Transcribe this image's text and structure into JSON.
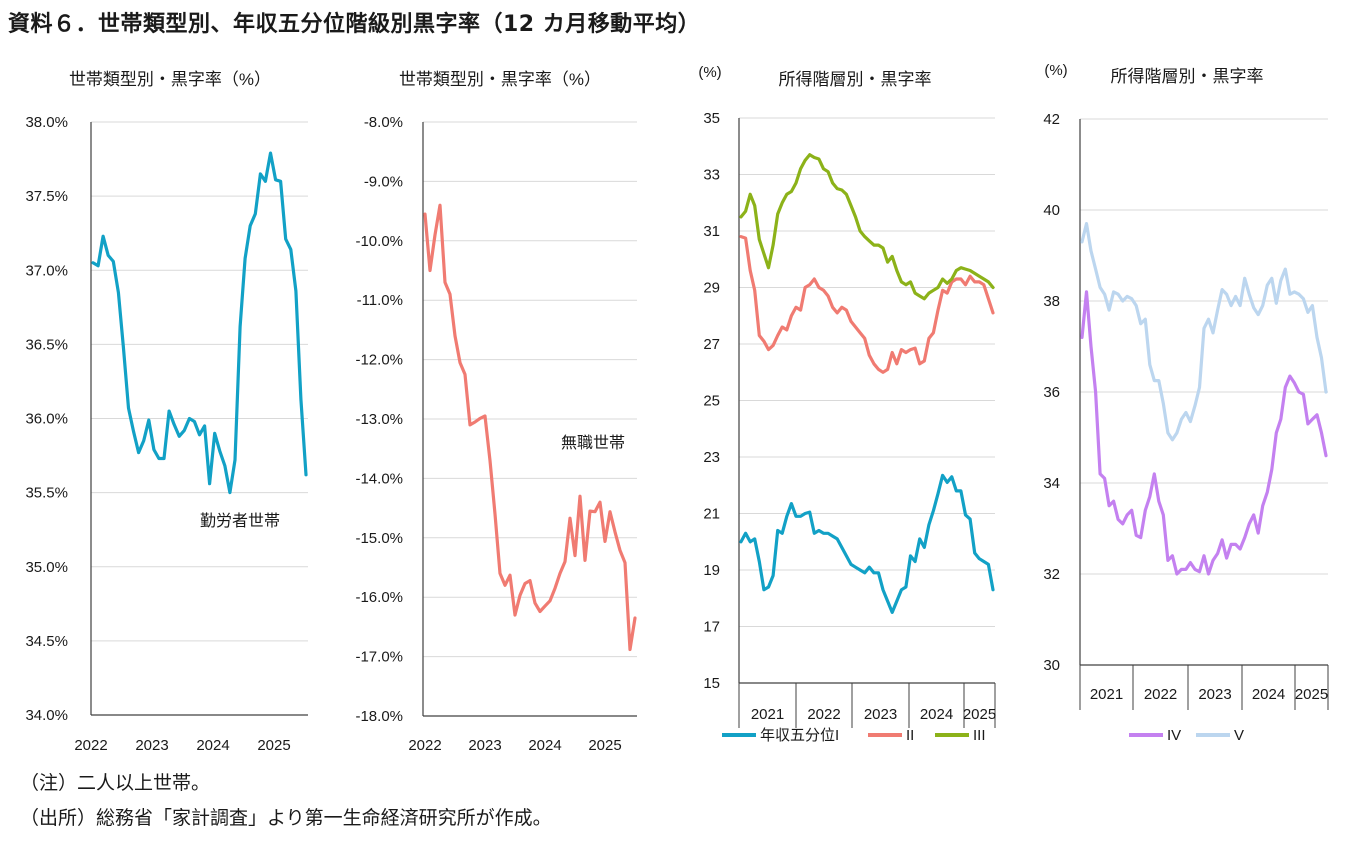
{
  "page": {
    "title": "資料６．世帯類型別、年収五分位階級別黒字率（12 カ月移動平均）",
    "note": "（注）二人以上世帯。",
    "source": "（出所）総務省「家計調査」より第一生命経済研究所が作成。"
  },
  "chart_data": [
    {
      "type": "line",
      "title": "世帯類型別・黒字率（%）",
      "annotation": "勤労者世帯",
      "x_ticks": [
        "2022",
        "2023",
        "2024",
        "2025"
      ],
      "y_ticks": [
        "38.0%",
        "37.5%",
        "37.0%",
        "36.5%",
        "36.0%",
        "35.5%",
        "35.0%",
        "34.5%",
        "34.0%"
      ],
      "ylim": [
        34.0,
        38.0
      ],
      "grid": true,
      "series": [
        {
          "color": "#12a1c6",
          "values": [
            37.05,
            37.03,
            37.23,
            37.1,
            37.06,
            36.85,
            36.48,
            36.07,
            35.91,
            35.77,
            35.85,
            35.99,
            35.79,
            35.73,
            35.73,
            36.05,
            35.96,
            35.88,
            35.92,
            36.0,
            35.98,
            35.89,
            35.95,
            35.56,
            35.9,
            35.78,
            35.68,
            35.5,
            35.72,
            36.62,
            37.08,
            37.3,
            37.38,
            37.65,
            37.6,
            37.79,
            37.61,
            37.6,
            37.21,
            37.14,
            36.86,
            36.13,
            35.62
          ]
        }
      ]
    },
    {
      "type": "line",
      "title": "世帯類型別・黒字率（%）",
      "annotation": "無職世帯",
      "x_ticks": [
        "2022",
        "2023",
        "2024",
        "2025"
      ],
      "y_ticks": [
        "-8.0%",
        "-9.0%",
        "-10.0%",
        "-11.0%",
        "-12.0%",
        "-13.0%",
        "-14.0%",
        "-15.0%",
        "-16.0%",
        "-17.0%",
        "-18.0%"
      ],
      "ylim": [
        -18.0,
        -8.0
      ],
      "grid": true,
      "series": [
        {
          "color": "#f07b72",
          "values": [
            -9.55,
            -10.5,
            -9.9,
            -9.4,
            -10.7,
            -10.9,
            -11.6,
            -12.05,
            -12.25,
            -13.1,
            -13.05,
            -12.99,
            -12.95,
            -13.7,
            -14.6,
            -15.6,
            -15.8,
            -15.63,
            -16.3,
            -15.97,
            -15.77,
            -15.72,
            -16.1,
            -16.24,
            -16.15,
            -16.06,
            -15.85,
            -15.6,
            -15.4,
            -14.67,
            -15.3,
            -14.3,
            -15.38,
            -14.55,
            -14.56,
            -14.4,
            -15.06,
            -14.56,
            -14.9,
            -15.21,
            -15.42,
            -16.88,
            -16.35
          ]
        }
      ]
    },
    {
      "type": "line",
      "title": "所得階層別・黒字率",
      "unit": "(%)",
      "x_ticks": [
        "2021",
        "2022",
        "2023",
        "2024",
        "2025"
      ],
      "y_ticks": [
        "35",
        "33",
        "31",
        "29",
        "27",
        "25",
        "23",
        "21",
        "19",
        "17",
        "15"
      ],
      "ylim": [
        15,
        35
      ],
      "grid": true,
      "legend_position": "bottom",
      "series": [
        {
          "name": "年収五分位I",
          "color": "#12a1c6",
          "values": [
            20.0,
            20.3,
            20.0,
            20.1,
            19.3,
            18.3,
            18.4,
            18.8,
            20.4,
            20.3,
            20.9,
            21.35,
            20.9,
            20.9,
            21.0,
            21.05,
            20.3,
            20.4,
            20.3,
            20.3,
            20.2,
            20.1,
            19.8,
            19.5,
            19.2,
            19.1,
            19.0,
            18.9,
            19.1,
            18.9,
            18.9,
            18.3,
            17.9,
            17.5,
            17.9,
            18.3,
            18.4,
            19.5,
            19.3,
            20.1,
            19.8,
            20.6,
            21.1,
            21.7,
            22.35,
            22.1,
            22.3,
            21.8,
            21.8,
            20.95,
            20.8,
            19.6,
            19.4,
            19.3,
            19.2,
            18.3
          ]
        },
        {
          "name": "II",
          "color": "#f07b72",
          "values": [
            30.8,
            30.75,
            29.6,
            28.9,
            27.3,
            27.1,
            26.8,
            26.95,
            27.3,
            27.6,
            27.5,
            28.0,
            28.3,
            28.2,
            29.0,
            29.1,
            29.3,
            29.0,
            28.9,
            28.7,
            28.3,
            28.1,
            28.3,
            28.2,
            27.8,
            27.6,
            27.4,
            27.2,
            26.6,
            26.3,
            26.1,
            26.0,
            26.1,
            26.7,
            26.3,
            26.8,
            26.7,
            26.8,
            26.85,
            26.3,
            26.4,
            27.2,
            27.4,
            28.2,
            28.9,
            28.8,
            29.2,
            29.3,
            29.3,
            29.1,
            29.4,
            29.2,
            29.2,
            29.1,
            28.6,
            28.1
          ]
        },
        {
          "name": "III",
          "color": "#8cb219",
          "values": [
            31.5,
            31.7,
            32.3,
            31.9,
            30.7,
            30.2,
            29.7,
            30.5,
            31.6,
            32.0,
            32.3,
            32.4,
            32.7,
            33.2,
            33.5,
            33.7,
            33.6,
            33.55,
            33.2,
            33.1,
            32.7,
            32.5,
            32.45,
            32.3,
            31.9,
            31.5,
            31.0,
            30.8,
            30.65,
            30.5,
            30.5,
            30.4,
            29.9,
            30.1,
            29.6,
            29.2,
            29.1,
            29.2,
            28.8,
            28.7,
            28.6,
            28.8,
            28.9,
            29.0,
            29.3,
            29.15,
            29.3,
            29.6,
            29.7,
            29.65,
            29.6,
            29.5,
            29.4,
            29.3,
            29.2,
            29.0
          ]
        }
      ]
    },
    {
      "type": "line",
      "title": "所得階層別・黒字率",
      "unit": "(%)",
      "x_ticks": [
        "2021",
        "2022",
        "2023",
        "2024",
        "2025"
      ],
      "y_ticks": [
        "42",
        "40",
        "38",
        "36",
        "34",
        "32",
        "30"
      ],
      "ylim": [
        30,
        42
      ],
      "grid": true,
      "legend_position": "bottom",
      "series": [
        {
          "name": "IV",
          "color": "#c481f0",
          "values": [
            37.2,
            38.2,
            37.0,
            36.0,
            34.2,
            34.1,
            33.5,
            33.6,
            33.2,
            33.1,
            33.3,
            33.4,
            32.85,
            32.8,
            33.4,
            33.7,
            34.2,
            33.6,
            33.3,
            32.3,
            32.4,
            32.0,
            32.1,
            32.1,
            32.25,
            32.1,
            32.05,
            32.4,
            32.0,
            32.3,
            32.45,
            32.75,
            32.35,
            32.65,
            32.65,
            32.55,
            32.8,
            33.1,
            33.3,
            32.9,
            33.5,
            33.8,
            34.3,
            35.1,
            35.4,
            36.1,
            36.35,
            36.2,
            36.0,
            35.95,
            35.3,
            35.4,
            35.5,
            35.1,
            34.6
          ]
        },
        {
          "name": "V",
          "color": "#bcd6ef",
          "values": [
            39.3,
            39.7,
            39.1,
            38.7,
            38.3,
            38.15,
            37.8,
            38.2,
            38.15,
            38.0,
            38.1,
            38.05,
            37.9,
            37.5,
            37.6,
            36.6,
            36.25,
            36.25,
            35.75,
            35.1,
            34.95,
            35.1,
            35.4,
            35.55,
            35.35,
            35.7,
            36.1,
            37.4,
            37.6,
            37.3,
            37.8,
            38.25,
            38.15,
            37.9,
            38.1,
            37.9,
            38.5,
            38.15,
            37.85,
            37.7,
            37.9,
            38.35,
            38.5,
            37.95,
            38.45,
            38.7,
            38.15,
            38.2,
            38.15,
            38.05,
            37.75,
            37.9,
            37.2,
            36.75,
            36.0
          ]
        }
      ]
    }
  ]
}
